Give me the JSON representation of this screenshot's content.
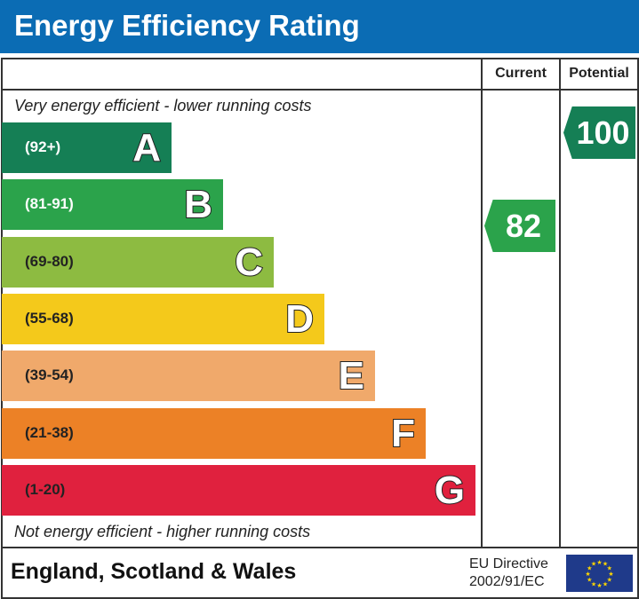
{
  "title": "Energy Efficiency Rating",
  "chart_data": {
    "type": "bar",
    "title": "Energy Efficiency Rating",
    "columns": [
      "Current",
      "Potential"
    ],
    "top_note": "Very energy efficient - lower running costs",
    "bottom_note": "Not energy efficient - higher running costs",
    "bands": [
      {
        "letter": "A",
        "range": "(92+)",
        "color": "#157f55",
        "text_color": "#fff"
      },
      {
        "letter": "B",
        "range": "(81-91)",
        "color": "#2ba34b",
        "text_color": "#fff"
      },
      {
        "letter": "C",
        "range": "(69-80)",
        "color": "#8dbb41",
        "text_color": "#222"
      },
      {
        "letter": "D",
        "range": "(55-68)",
        "color": "#f4c91b",
        "text_color": "#222"
      },
      {
        "letter": "E",
        "range": "(39-54)",
        "color": "#f0a96b",
        "text_color": "#222"
      },
      {
        "letter": "F",
        "range": "(21-38)",
        "color": "#ec8126",
        "text_color": "#222"
      },
      {
        "letter": "G",
        "range": "(1-20)",
        "color": "#e0213e",
        "text_color": "#222"
      }
    ],
    "current": {
      "value": "82",
      "band": "B",
      "color": "#2ba34b"
    },
    "potential": {
      "value": "100",
      "band": "A",
      "color": "#157f55"
    }
  },
  "footer": {
    "country": "England, Scotland & Wales",
    "directive_line1": "EU Directive",
    "directive_line2": "2002/91/EC",
    "flag": "eu-flag"
  }
}
